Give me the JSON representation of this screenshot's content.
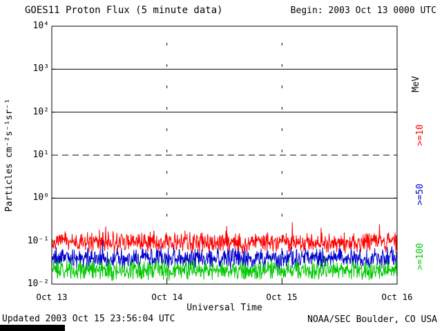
{
  "header": {
    "title": "GOES11 Proton Flux (5 minute data)",
    "begin_label": "Begin: 2003 Oct 13 0000 UTC"
  },
  "footer": {
    "updated": "Updated 2003 Oct 15 23:56:04 UTC",
    "source": "NOAA/SEC Boulder, CO USA"
  },
  "chart_data": {
    "type": "line",
    "title": "GOES11 Proton Flux (5 minute data)",
    "xlabel": "Universal Time",
    "ylabel": "Particles cm⁻²s⁻¹sr⁻¹",
    "begin": "2003 Oct 13 0000 UTC",
    "x_tick_labels": [
      "Oct 13",
      "Oct 14",
      "Oct 15",
      "Oct 16"
    ],
    "x_tick_day": [
      0,
      1,
      2,
      3
    ],
    "x_span_days": 3,
    "sampling": "5 minute",
    "n_points": 864,
    "ylim_log10": [
      -2,
      4
    ],
    "y_tick_log10": [
      4,
      3,
      2,
      1,
      0,
      -1,
      -2
    ],
    "y_tick_labels": [
      "10⁴",
      "10³",
      "10²",
      "10¹",
      "10⁰",
      "10⁻¹",
      "10⁻²"
    ],
    "right_axis_unit": "MeV",
    "hlines": [
      {
        "log10": 3,
        "style": "solid"
      },
      {
        "log10": 2,
        "style": "solid"
      },
      {
        "log10": 1,
        "style": "dashed"
      },
      {
        "log10": 0,
        "style": "solid"
      }
    ],
    "vlines_day": [
      1,
      2
    ],
    "grid": "partial",
    "legend_position": "right-rotated",
    "series": [
      {
        "name": ">=10",
        "unit": "MeV",
        "color": "#ff0000",
        "approx_median_pfu": 0.1,
        "approx_range_pfu": [
          0.05,
          0.45
        ],
        "shape": "tri",
        "log10_center": -1.03,
        "log10_spread": 0.28,
        "spike_prob": 0.025,
        "spike_amp": 0.4,
        "seed": 101
      },
      {
        "name": ">=50",
        "unit": "MeV",
        "color": "#0000cc",
        "approx_median_pfu": 0.04,
        "approx_range_pfu": [
          0.02,
          0.13
        ],
        "shape": "tri",
        "log10_center": -1.4,
        "log10_spread": 0.3,
        "spike_prob": 0.008,
        "spike_amp": 0.3,
        "seed": 202
      },
      {
        "name": ">=100",
        "unit": "MeV",
        "color": "#00c800",
        "approx_median_pfu": 0.022,
        "approx_range_pfu": [
          0.011,
          0.06
        ],
        "shape": "tri",
        "log10_center": -1.68,
        "log10_spread": 0.27,
        "spike_prob": 0.01,
        "spike_amp": 0.25,
        "seed": 303
      }
    ]
  }
}
